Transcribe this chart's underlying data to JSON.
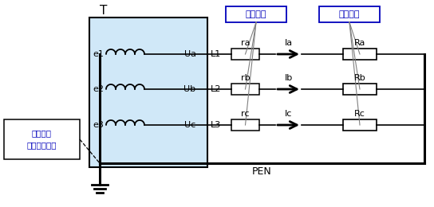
{
  "bg_color": "#ffffff",
  "transformer_box_color": "#d0e8f8",
  "label_T": "T",
  "label_e1": "e1",
  "label_e2": "e2",
  "label_e3": "e3",
  "label_Ua": "Ua",
  "label_Ub": "Ub",
  "label_Uc": "Uc",
  "label_L1": "L1",
  "label_L2": "L2",
  "label_L3": "L3",
  "label_ra": "ra",
  "label_rb": "rb",
  "label_rc": "rc",
  "label_Ia": "Ia",
  "label_Ib": "Ib",
  "label_Ic": "Ic",
  "label_Ra": "Ra",
  "label_Rb": "Rb",
  "label_Rc": "Rc",
  "label_PEN": "PEN",
  "label_ground_box": "系统接地\n或者工作接地",
  "label_line_res": "线路电阻",
  "label_load_res": "负载电阻",
  "line_color": "#000000",
  "annotation_color": "#0000bb",
  "font_path": "SimHei"
}
